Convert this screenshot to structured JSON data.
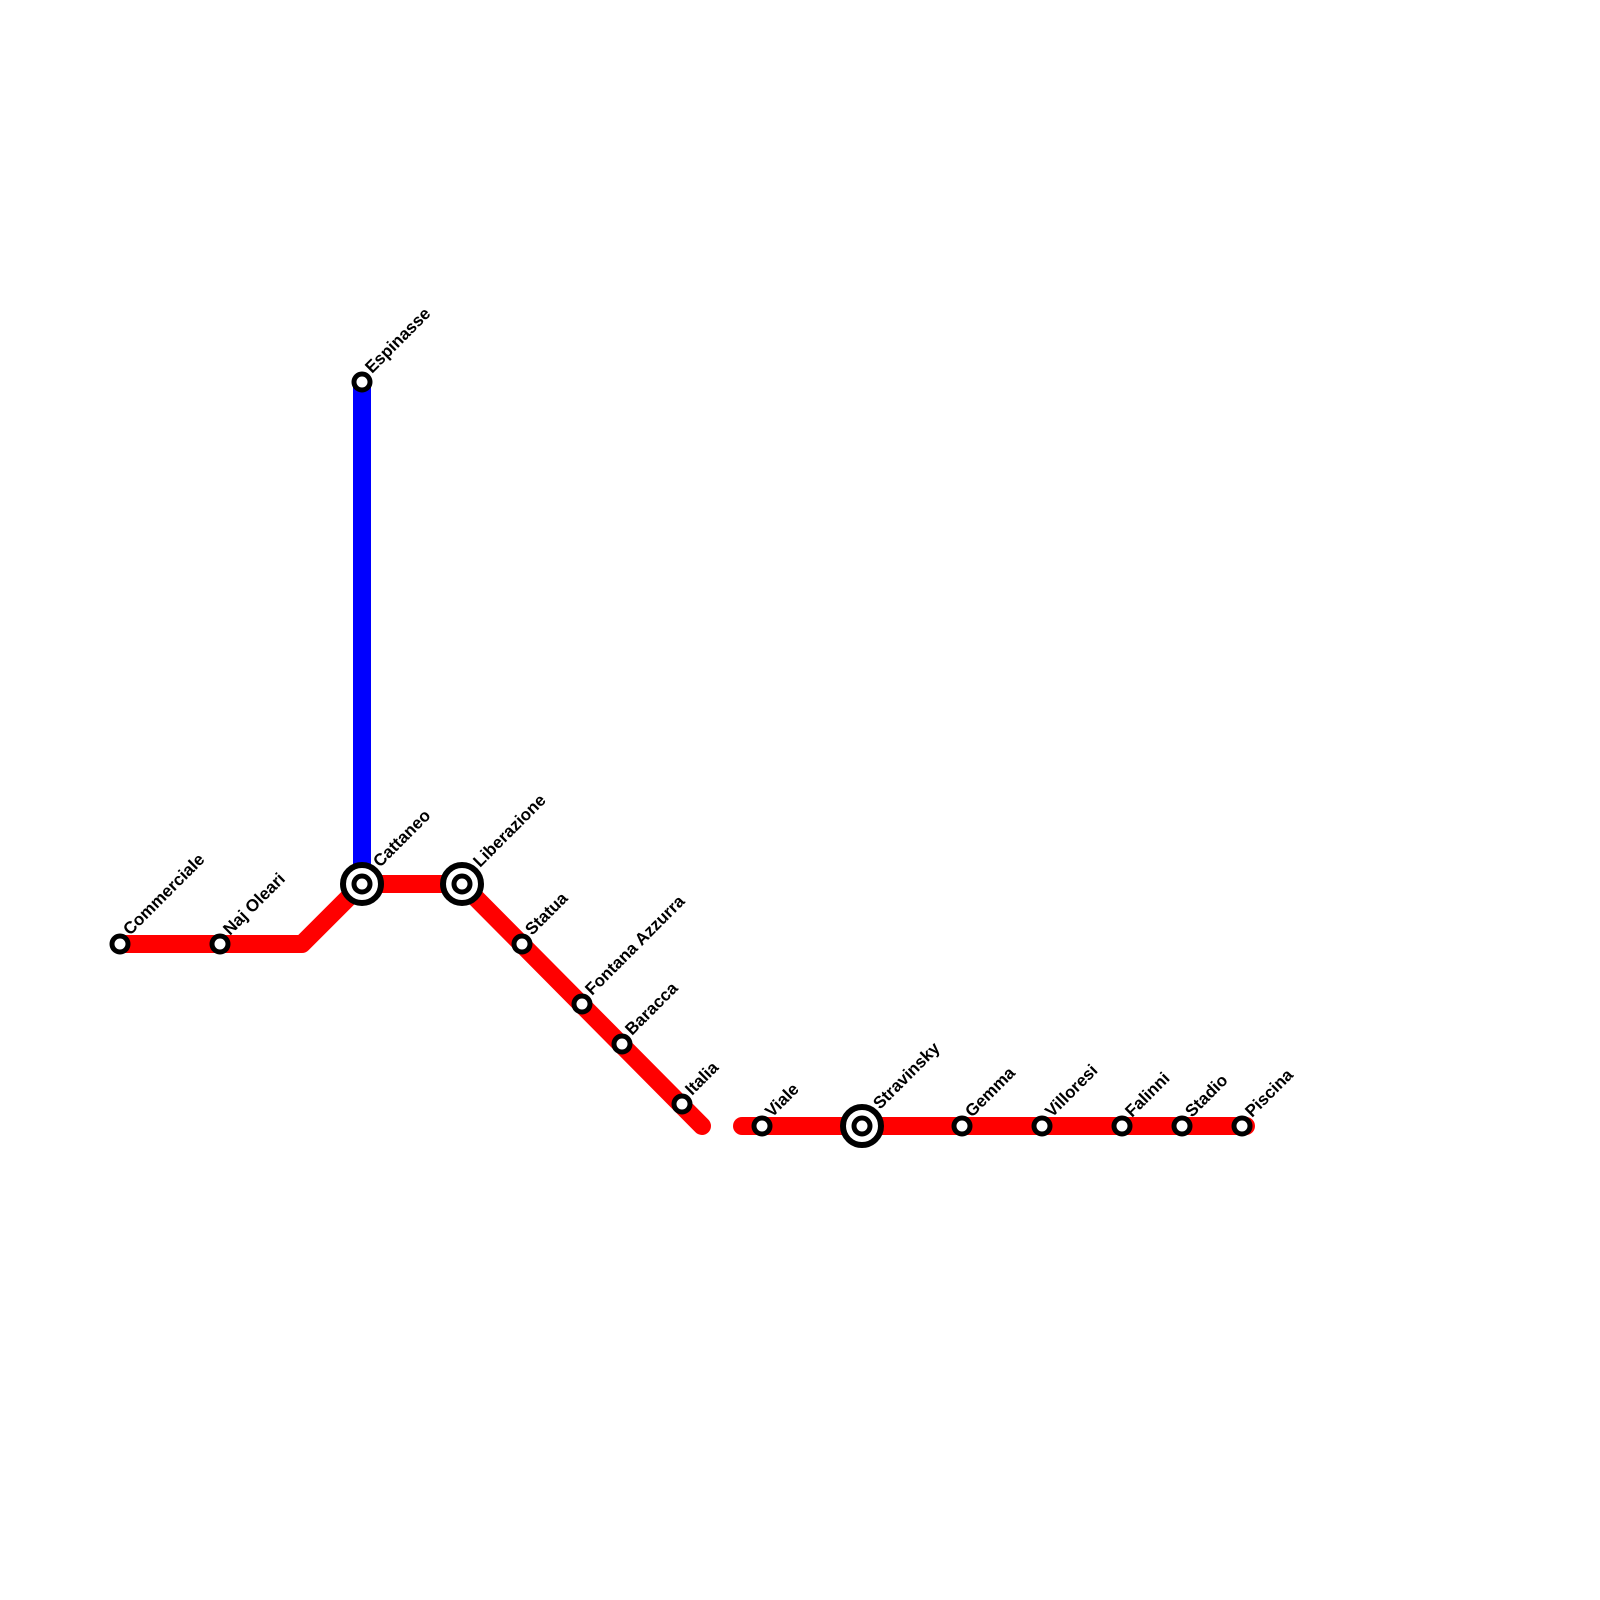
{
  "lines": [
    {
      "id": "blue",
      "color": "#0000ff"
    },
    {
      "id": "red",
      "color": "#ff0000"
    }
  ],
  "stations": [
    {
      "id": "espinasse",
      "name": "Espinasse",
      "interchange": false
    },
    {
      "id": "commerciale",
      "name": "Commerciale",
      "interchange": false
    },
    {
      "id": "naj-oleari",
      "name": "Naj Oleari",
      "interchange": false
    },
    {
      "id": "cattaneo",
      "name": "Cattaneo",
      "interchange": true
    },
    {
      "id": "liberazione",
      "name": "Liberazione",
      "interchange": true
    },
    {
      "id": "statua",
      "name": "Statua",
      "interchange": false
    },
    {
      "id": "fontana-azzurra",
      "name": "Fontana Azzurra",
      "interchange": false
    },
    {
      "id": "baracca",
      "name": "Baracca",
      "interchange": false
    },
    {
      "id": "italia",
      "name": "Italia",
      "interchange": false
    },
    {
      "id": "viale",
      "name": "Viale",
      "interchange": false
    },
    {
      "id": "stravinsky",
      "name": "Stravinsky",
      "interchange": true
    },
    {
      "id": "gemma",
      "name": "Gemma",
      "interchange": false
    },
    {
      "id": "villoresi",
      "name": "Villoresi",
      "interchange": false
    },
    {
      "id": "falinni",
      "name": "Falinni",
      "interchange": false
    },
    {
      "id": "stadio",
      "name": "Stadio",
      "interchange": false
    },
    {
      "id": "piscina",
      "name": "Piscina",
      "interchange": false
    }
  ]
}
